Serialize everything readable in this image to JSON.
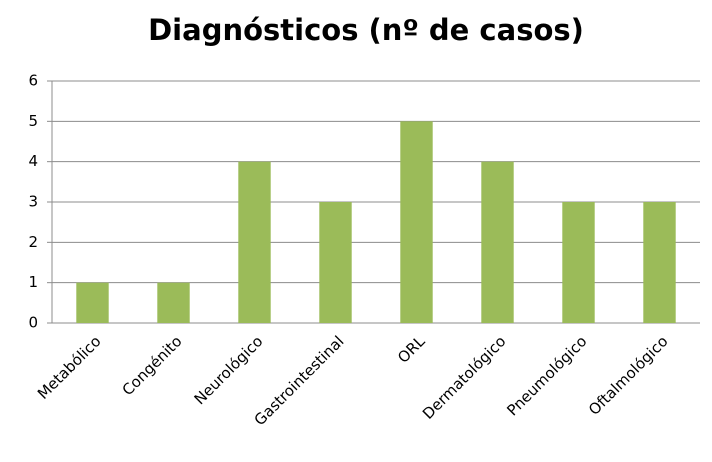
{
  "chart_data": {
    "type": "bar",
    "title": "Diagnósticos (nº de casos)",
    "categories": [
      "Metabólico",
      "Congénito",
      "Neurológico",
      "Gastrointestinal",
      "ORL",
      "Dermatológico",
      "Pneumológico",
      "Oftalmológico"
    ],
    "values": [
      1,
      1,
      4,
      3,
      5,
      4,
      3,
      3
    ],
    "color": "#9bbb59",
    "ylim": [
      0,
      6
    ],
    "yticks": [
      0,
      1,
      2,
      3,
      4,
      5,
      6
    ],
    "grid": true
  }
}
